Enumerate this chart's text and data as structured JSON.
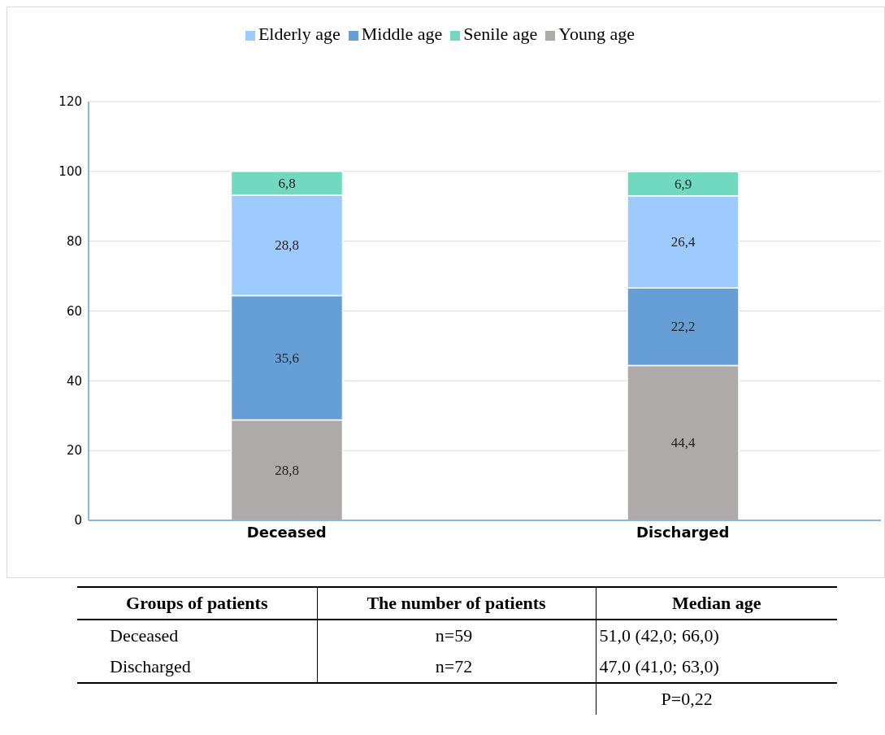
{
  "chart_data": [
    {
      "type": "bar",
      "stacked": true,
      "categories": [
        "Deceased",
        "Discharged"
      ],
      "series": [
        {
          "name": "Young age",
          "color": "#aeaaaa",
          "values": [
            28.8,
            44.4
          ],
          "value_labels": [
            "28,8",
            "44,4"
          ]
        },
        {
          "name": "Middle age",
          "color": "#659fd6",
          "values": [
            35.6,
            22.2
          ],
          "value_labels": [
            "35,6",
            "22,2"
          ]
        },
        {
          "name": "Elderly age",
          "color": "#9dcbff",
          "values": [
            28.8,
            26.4
          ],
          "value_labels": [
            "28,8",
            "26,4"
          ]
        },
        {
          "name": "Senile age",
          "color": "#70d9c0",
          "values": [
            6.8,
            6.9
          ],
          "value_labels": [
            "6,8",
            "6,9"
          ]
        }
      ],
      "ylim": [
        0,
        120
      ],
      "yticks": [
        0,
        20,
        40,
        60,
        80,
        100,
        120
      ],
      "grid": "y",
      "legend": "top"
    },
    {
      "type": "other",
      "annotations": [
        "Groups of patients",
        "The number of patients",
        "Median age",
        "Deceased",
        "n=59",
        "51,0 (42,0; 66,0)",
        "Discharged",
        "n=72",
        "47,0 (41,0; 63,0)",
        "P=0,22"
      ]
    }
  ]
}
